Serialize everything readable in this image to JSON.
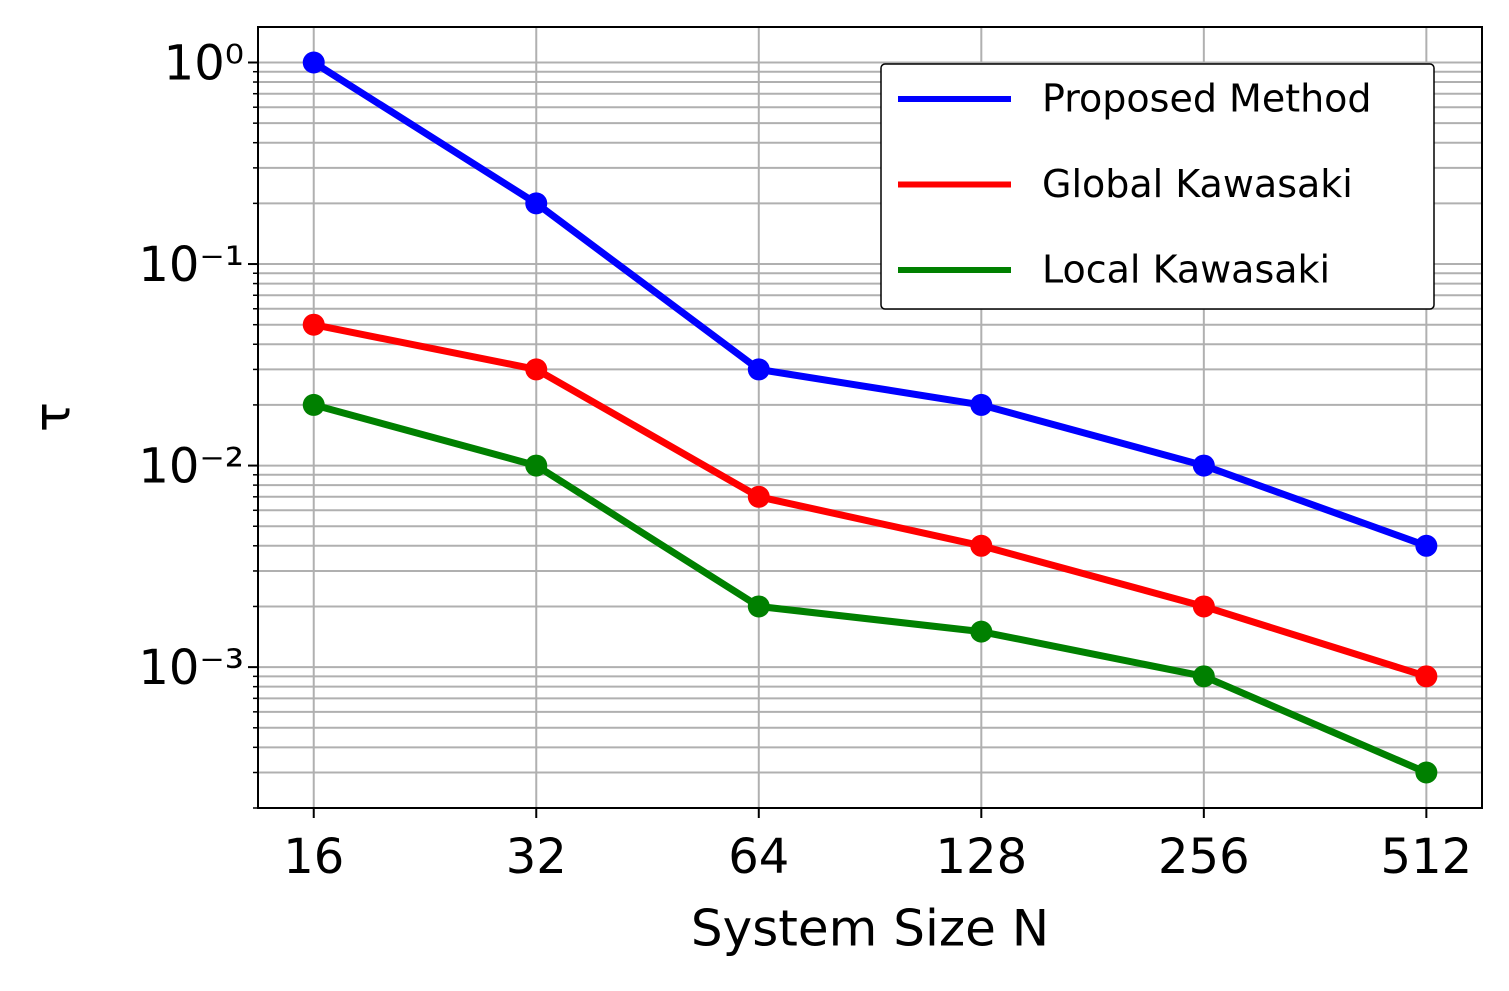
{
  "chart_data": {
    "type": "line",
    "x_label": "System Size N",
    "y_label": "τ",
    "x": [
      16,
      32,
      64,
      128,
      256,
      512
    ],
    "xscale": "log2",
    "yscale": "log",
    "xlim": [
      13.45,
      608.9
    ],
    "ylim": [
      0.0002,
      1.5
    ],
    "xticks": [
      16,
      32,
      64,
      128,
      256,
      512
    ],
    "yticks": [
      {
        "value": 0.001,
        "label": "10⁻³"
      },
      {
        "value": 0.01,
        "label": "10⁻²"
      },
      {
        "value": 0.1,
        "label": "10⁻¹"
      },
      {
        "value": 1,
        "label": "10⁰"
      }
    ],
    "yminor": [
      0.0002,
      0.0003,
      0.0004,
      0.0005,
      0.0006,
      0.0007,
      0.0008,
      0.0009,
      0.002,
      0.003,
      0.004,
      0.005,
      0.006,
      0.007,
      0.008,
      0.009,
      0.02,
      0.03,
      0.04,
      0.05,
      0.06,
      0.07,
      0.08,
      0.09,
      0.2,
      0.3,
      0.4,
      0.5,
      0.6,
      0.7,
      0.8,
      0.9
    ],
    "grid": true,
    "legend": "upper right",
    "series": [
      {
        "name": "Proposed Method",
        "color": "#0000ff",
        "values": [
          1,
          0.2,
          0.03,
          0.02,
          0.01,
          0.004
        ]
      },
      {
        "name": "Global Kawasaki",
        "color": "#ff0000",
        "values": [
          0.05,
          0.03,
          0.007,
          0.004,
          0.002,
          0.0009
        ]
      },
      {
        "name": "Local Kawasaki",
        "color": "#008000",
        "values": [
          0.02,
          0.01,
          0.002,
          0.0015,
          0.0009,
          0.0003
        ]
      }
    ]
  }
}
